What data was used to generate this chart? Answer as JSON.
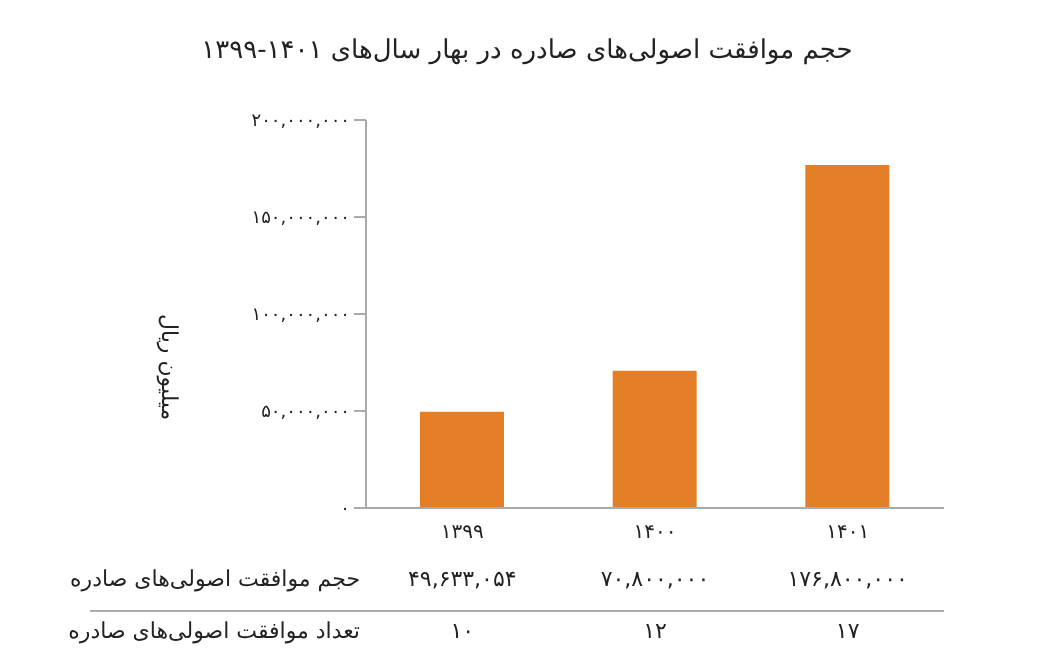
{
  "chart_data": {
    "type": "bar",
    "title": "حجم موافقت اصولی‌های صادره در بهار سال‌های ۱۴۰۱-۱۳۹۹",
    "ylabel": "میلیون ریال",
    "categories": [
      "۱۳۹۹",
      "۱۴۰۰",
      "۱۴۰۱"
    ],
    "series": [
      {
        "name": "حجم موافقت اصولی‌های صادره",
        "color": "#e47f27",
        "values": [
          49633054,
          70800000,
          176800000
        ],
        "value_labels": [
          "۴۹,۶۳۳,۰۵۴",
          "۷۰,۸۰۰,۰۰۰",
          "۱۷۶,۸۰۰,۰۰۰"
        ]
      }
    ],
    "ylim": [
      0,
      200000000
    ],
    "yticks": [
      {
        "value": 0,
        "label": "۰"
      },
      {
        "value": 50000000,
        "label": "۵۰,۰۰۰,۰۰۰"
      },
      {
        "value": 100000000,
        "label": "۱۰۰,۰۰۰,۰۰۰"
      },
      {
        "value": 150000000,
        "label": "۱۵۰,۰۰۰,۰۰۰"
      },
      {
        "value": 200000000,
        "label": "۲۰۰,۰۰۰,۰۰۰"
      }
    ],
    "annotations": [
      "تعداد موافقت اصولی‌های صادره",
      "۱۰",
      "۱۲",
      "۱۷"
    ]
  }
}
